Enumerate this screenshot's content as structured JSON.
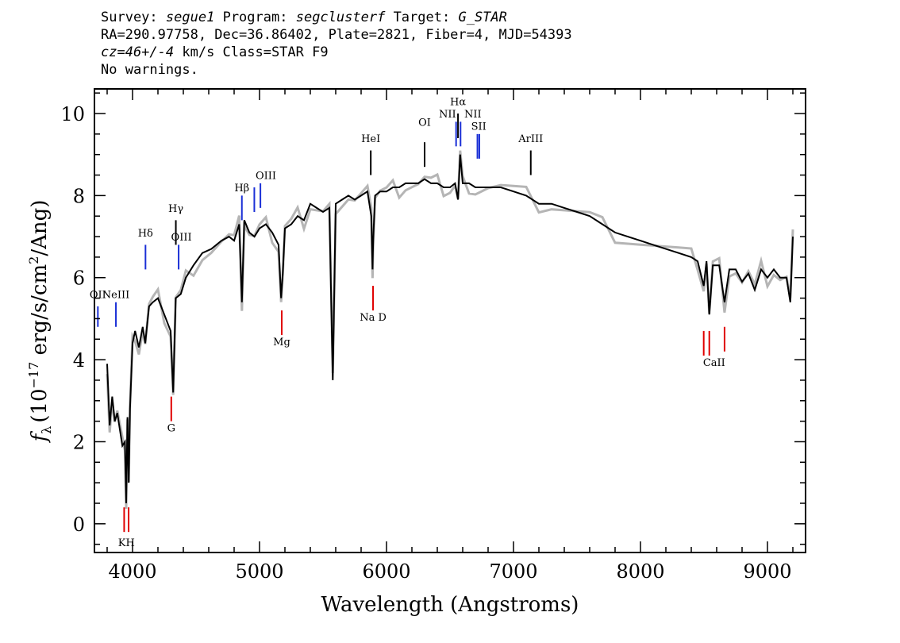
{
  "header": {
    "survey_label": "Survey:",
    "survey": "segue1",
    "program_label": "Program:",
    "program": "segclusterf",
    "target_label": "Target:",
    "target": "G_STAR",
    "line2": "RA=290.97758, Dec=36.86402, Plate=2821, Fiber=4, MJD=54393",
    "cz_value": "cz=46+/-4",
    "cz_rest": " km/s Class=STAR F9",
    "line4": "No warnings."
  },
  "chart_data": {
    "type": "line",
    "title": "",
    "xlabel": "Wavelength (Angstroms)",
    "ylabel": "f_λ (10^-17 erg/s/cm^2/Ang)",
    "ylabel_parts": {
      "f": "f",
      "lambda": "λ",
      "main": "(10",
      "exp": "−17",
      "rest": " erg/s/cm",
      "exp2": "2",
      "tail": "/Ang)"
    },
    "xlim": [
      3700,
      9300
    ],
    "ylim": [
      -0.7,
      10.6
    ],
    "x_ticks": [
      4000,
      5000,
      6000,
      7000,
      8000,
      9000
    ],
    "y_ticks": [
      0,
      2,
      4,
      6,
      8,
      10
    ],
    "grid": false,
    "series": [
      {
        "color": "#000000",
        "x": [
          3800,
          3820,
          3840,
          3860,
          3880,
          3900,
          3920,
          3940,
          3950,
          3960,
          3970,
          3980,
          4000,
          4020,
          4050,
          4080,
          4100,
          4130,
          4160,
          4200,
          4250,
          4300,
          4320,
          4340,
          4380,
          4420,
          4480,
          4550,
          4620,
          4700,
          4760,
          4800,
          4840,
          4861,
          4880,
          4920,
          4960,
          5000,
          5050,
          5100,
          5150,
          5170,
          5183,
          5200,
          5250,
          5300,
          5350,
          5400,
          5450,
          5500,
          5550,
          5577,
          5600,
          5650,
          5700,
          5750,
          5800,
          5850,
          5880,
          5890,
          5895,
          5910,
          5950,
          6000,
          6050,
          6100,
          6150,
          6200,
          6250,
          6300,
          6350,
          6400,
          6450,
          6500,
          6540,
          6563,
          6580,
          6600,
          6650,
          6700,
          6750,
          6800,
          6900,
          7000,
          7100,
          7200,
          7300,
          7400,
          7500,
          7600,
          7700,
          7800,
          7900,
          8000,
          8100,
          8200,
          8300,
          8400,
          8450,
          8498,
          8520,
          8542,
          8570,
          8620,
          8662,
          8700,
          8750,
          8800,
          8850,
          8900,
          8950,
          9000,
          9050,
          9100,
          9150,
          9180,
          9200
        ],
        "y": [
          3.9,
          2.4,
          3.1,
          2.5,
          2.7,
          2.3,
          1.9,
          2.0,
          0.5,
          2.6,
          1.0,
          2.8,
          4.4,
          4.7,
          4.3,
          4.8,
          4.4,
          5.3,
          5.4,
          5.5,
          5.1,
          4.7,
          3.2,
          5.5,
          5.6,
          6.0,
          6.3,
          6.6,
          6.7,
          6.9,
          7.0,
          6.9,
          7.3,
          5.4,
          7.4,
          7.1,
          7.0,
          7.2,
          7.3,
          7.1,
          6.8,
          5.5,
          6.1,
          7.2,
          7.3,
          7.5,
          7.4,
          7.8,
          7.7,
          7.6,
          7.7,
          3.5,
          7.8,
          7.9,
          8.0,
          7.9,
          8.0,
          8.1,
          7.5,
          6.2,
          6.9,
          8.0,
          8.1,
          8.1,
          8.2,
          8.2,
          8.3,
          8.3,
          8.3,
          8.4,
          8.3,
          8.3,
          8.2,
          8.2,
          8.3,
          7.9,
          9.0,
          8.3,
          8.3,
          8.2,
          8.2,
          8.2,
          8.2,
          8.1,
          8.0,
          7.8,
          7.8,
          7.7,
          7.6,
          7.5,
          7.3,
          7.1,
          7.0,
          6.9,
          6.8,
          6.7,
          6.6,
          6.5,
          6.4,
          5.8,
          6.4,
          5.1,
          6.3,
          6.3,
          5.4,
          6.2,
          6.2,
          5.9,
          6.1,
          5.7,
          6.2,
          6.0,
          6.2,
          6.0,
          6.0,
          5.4,
          7.0
        ]
      }
    ],
    "emission_lines": [
      {
        "label": "OII",
        "x": 3727,
        "y_low": 4.8,
        "y_high": 5.3,
        "color": "#1a2fd6"
      },
      {
        "label": "NeIII",
        "x": 3869,
        "y_low": 4.8,
        "y_high": 5.4,
        "color": "#1a2fd6"
      },
      {
        "label": "Hδ",
        "x": 4102,
        "y_low": 6.2,
        "y_high": 6.8,
        "color": "#1a2fd6"
      },
      {
        "label": "Hγ",
        "x": 4341,
        "y_low": 6.8,
        "y_high": 7.4,
        "color": "#000000"
      },
      {
        "label": "OIII",
        "x": 4363,
        "y_low": 6.2,
        "y_high": 6.8,
        "color": "#1a2fd6"
      },
      {
        "label": "Hβ",
        "x": 4861,
        "y_low": 7.4,
        "y_high": 8.0,
        "color": "#1a2fd6"
      },
      {
        "label": "OIII",
        "x": 4959,
        "y_low": 7.6,
        "y_high": 8.2,
        "color": "#1a2fd6"
      },
      {
        "label": "OIII",
        "x": 5007,
        "y_low": 7.7,
        "y_high": 8.3,
        "color": "#1a2fd6"
      },
      {
        "label": "HeI",
        "x": 5876,
        "y_low": 8.5,
        "y_high": 9.1,
        "color": "#000000"
      },
      {
        "label": "OI",
        "x": 6300,
        "y_low": 8.7,
        "y_high": 9.3,
        "color": "#000000"
      },
      {
        "label": "NII",
        "x": 6548,
        "y_low": 9.2,
        "y_high": 9.8,
        "color": "#1a2fd6"
      },
      {
        "label": "Hα",
        "x": 6563,
        "y_low": 9.4,
        "y_high": 10.0,
        "color": "#000000"
      },
      {
        "label": "NII",
        "x": 6583,
        "y_low": 9.2,
        "y_high": 9.8,
        "color": "#1a2fd6"
      },
      {
        "label": "SII",
        "x": 6716,
        "y_low": 8.9,
        "y_high": 9.5,
        "color": "#1a2fd6"
      },
      {
        "label": "SII",
        "x": 6731,
        "y_low": 8.9,
        "y_high": 9.5,
        "color": "#1a2fd6"
      },
      {
        "label": "ArIII",
        "x": 7136,
        "y_low": 8.5,
        "y_high": 9.1,
        "color": "#000000"
      }
    ],
    "absorption_lines": [
      {
        "label": "K",
        "x": 3934,
        "y_low": -0.2,
        "y_high": 0.4,
        "color": "#e00000"
      },
      {
        "label": "H",
        "x": 3969,
        "y_low": -0.2,
        "y_high": 0.4,
        "color": "#e00000"
      },
      {
        "label": "G",
        "x": 4305,
        "y_low": 2.5,
        "y_high": 3.1,
        "color": "#e00000"
      },
      {
        "label": "Mg",
        "x": 5175,
        "y_low": 4.6,
        "y_high": 5.2,
        "color": "#e00000"
      },
      {
        "label": "Na",
        "x": 5894,
        "y_low": 5.2,
        "y_high": 5.8,
        "color": "#e00000"
      },
      {
        "label": "CaII",
        "x": 8498,
        "y_low": 4.1,
        "y_high": 4.7,
        "color": "#e00000"
      },
      {
        "label": "CaII",
        "x": 8542,
        "y_low": 4.1,
        "y_high": 4.7,
        "color": "#e00000"
      },
      {
        "label": "CaII",
        "x": 8662,
        "y_low": 4.2,
        "y_high": 4.8,
        "color": "#e00000"
      }
    ],
    "line_labels": [
      {
        "text": "OII",
        "x": 3727,
        "y": 5.5
      },
      {
        "text": "NeIII",
        "x": 3869,
        "y": 5.5
      },
      {
        "text": "Hδ",
        "x": 4102,
        "y": 7.0
      },
      {
        "text": "Hγ",
        "x": 4341,
        "y": 7.6
      },
      {
        "text": "OIII",
        "x": 4385,
        "y": 6.9
      },
      {
        "text": "Hβ",
        "x": 4861,
        "y": 8.1
      },
      {
        "text": "OIII",
        "x": 5050,
        "y": 8.4
      },
      {
        "text": "HeI",
        "x": 5876,
        "y": 9.3
      },
      {
        "text": "OI",
        "x": 6300,
        "y": 9.7
      },
      {
        "text": "NII",
        "x": 6480,
        "y": 9.9
      },
      {
        "text": "Hα",
        "x": 6563,
        "y": 10.2
      },
      {
        "text": "NII",
        "x": 6680,
        "y": 9.9
      },
      {
        "text": "SII",
        "x": 6726,
        "y": 9.6
      },
      {
        "text": "ArIII",
        "x": 7136,
        "y": 9.3
      },
      {
        "text": "KH",
        "x": 3952,
        "y": -0.55
      },
      {
        "text": "G",
        "x": 4305,
        "y": 2.25
      },
      {
        "text": "Mg",
        "x": 5175,
        "y": 4.35
      },
      {
        "text": "Na D",
        "x": 5894,
        "y": 4.95
      },
      {
        "text": "CaII",
        "x": 8580,
        "y": 3.85
      }
    ]
  }
}
